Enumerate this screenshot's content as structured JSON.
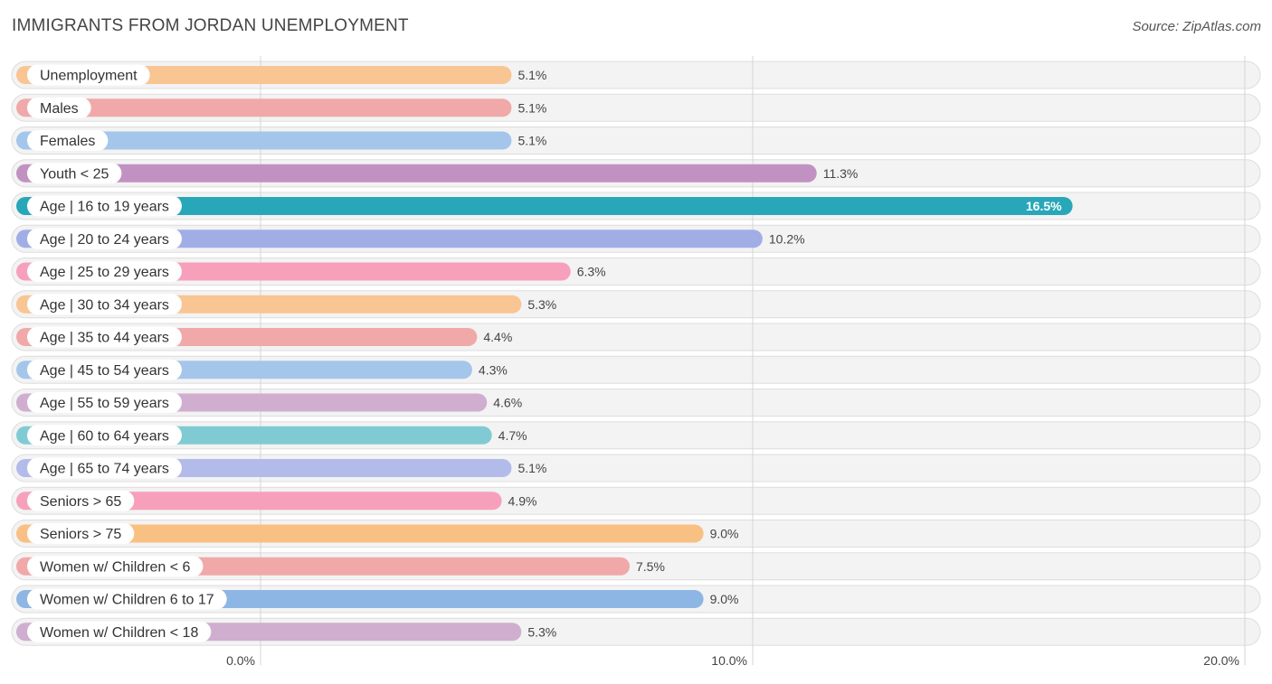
{
  "title": "IMMIGRANTS FROM JORDAN UNEMPLOYMENT",
  "source": "Source: ZipAtlas.com",
  "chart_data": {
    "type": "bar",
    "orientation": "horizontal",
    "title": "IMMIGRANTS FROM JORDAN UNEMPLOYMENT",
    "xlabel": "",
    "ylabel": "",
    "xlim": [
      0,
      20
    ],
    "ticks": [
      0,
      10,
      20
    ],
    "tick_labels": [
      "0.0%",
      "10.0%",
      "20.0%"
    ],
    "categories": [
      "Unemployment",
      "Males",
      "Females",
      "Youth < 25",
      "Age | 16 to 19 years",
      "Age | 20 to 24 years",
      "Age | 25 to 29 years",
      "Age | 30 to 34 years",
      "Age | 35 to 44 years",
      "Age | 45 to 54 years",
      "Age | 55 to 59 years",
      "Age | 60 to 64 years",
      "Age | 65 to 74 years",
      "Seniors > 65",
      "Seniors > 75",
      "Women w/ Children < 6",
      "Women w/ Children 6 to 17",
      "Women w/ Children < 18"
    ],
    "values": [
      5.1,
      5.1,
      5.1,
      11.3,
      16.5,
      10.2,
      6.3,
      5.3,
      4.4,
      4.3,
      4.6,
      4.7,
      5.1,
      4.9,
      9.0,
      7.5,
      9.0,
      5.3
    ],
    "value_labels": [
      "5.1%",
      "5.1%",
      "5.1%",
      "11.3%",
      "16.5%",
      "10.2%",
      "6.3%",
      "5.3%",
      "4.4%",
      "4.3%",
      "4.6%",
      "4.7%",
      "5.1%",
      "4.9%",
      "9.0%",
      "7.5%",
      "9.0%",
      "5.3%"
    ],
    "colors": [
      "#f9c593",
      "#f0a9a8",
      "#a4c6ea",
      "#c192c1",
      "#28a7b9",
      "#a1aee6",
      "#f7a0bc",
      "#f9c593",
      "#f0a9a8",
      "#a4c6ea",
      "#cfaed0",
      "#80cbd3",
      "#b2bbea",
      "#f7a0bc",
      "#f9c084",
      "#f0a9a8",
      "#8eb6e4",
      "#cfaed0"
    ],
    "highlight_index": 4
  }
}
